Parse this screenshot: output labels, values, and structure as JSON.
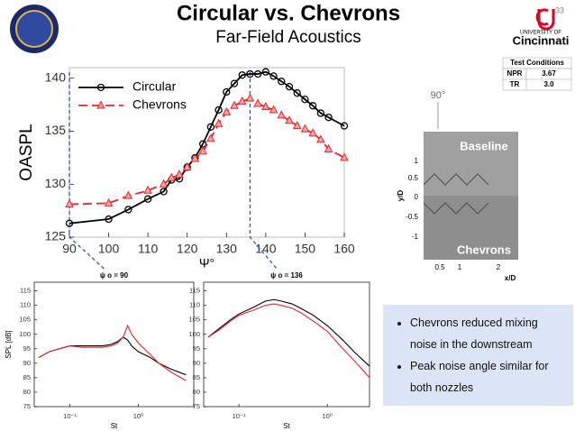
{
  "header": {
    "title": "Circular vs. Chevrons",
    "subtitle": "Far-Field Acoustics",
    "page_number": "33",
    "logo_line1": "UNIVERSITY OF",
    "logo_line2": "Cincinnati"
  },
  "table": {
    "title": "Test Conditions",
    "rows": [
      [
        "NPR",
        "3.67"
      ],
      [
        "TR",
        "3.0"
      ]
    ]
  },
  "schlieren": {
    "angle_label": "90°",
    "top_label": "Baseline",
    "bottom_label": "Chevrons",
    "y_label": "y/D",
    "x_label": "x/D",
    "yticks": [
      "1",
      "0.5",
      "0",
      "-0.5",
      "-1"
    ],
    "xticks": [
      "0.5",
      "1",
      "2"
    ]
  },
  "bullets": [
    "Chevrons reduced mixing noise in the downstream",
    "Peak noise angle similar for both nozzles"
  ],
  "chart_data": [
    {
      "type": "line",
      "y_label": "OASPL",
      "x_label": "Ψ°",
      "legend": "upper left",
      "marked_angles": [
        90,
        136
      ],
      "xlim": [
        90,
        160
      ],
      "xticks": [
        90,
        100,
        110,
        120,
        130,
        140,
        150,
        160
      ],
      "ylim": [
        125,
        141
      ],
      "yticks": [
        125,
        130,
        135,
        140
      ],
      "x": [
        90,
        100,
        105,
        110,
        114,
        116,
        118,
        120,
        122,
        124,
        126,
        128,
        130,
        132,
        134,
        136,
        138,
        140,
        142,
        144,
        146,
        148,
        150,
        152,
        154,
        156,
        160
      ],
      "series": [
        {
          "name": "Circular",
          "color": "#000000",
          "linestyle": "solid",
          "marker": "circle",
          "values": [
            126.3,
            126.7,
            127.6,
            128.6,
            129.3,
            130.4,
            130.5,
            131.6,
            132.5,
            133.8,
            135.4,
            137.0,
            138.7,
            139.5,
            140.3,
            140.4,
            140.4,
            140.6,
            140.2,
            139.7,
            139.2,
            138.6,
            138.0,
            137.4,
            136.7,
            136.3,
            135.5
          ]
        },
        {
          "name": "Chevrons",
          "color": "#e8262a",
          "linestyle": "dashed",
          "marker": "triangle",
          "values": [
            128.1,
            128.2,
            128.9,
            129.4,
            130.0,
            130.6,
            130.9,
            131.6,
            132.4,
            133.1,
            134.3,
            135.7,
            136.8,
            137.4,
            137.8,
            138.1,
            137.6,
            137.3,
            137.0,
            136.5,
            136.0,
            135.5,
            135.2,
            134.8,
            134.2,
            133.3,
            132.5
          ]
        }
      ]
    },
    {
      "type": "line",
      "title": "ψ o = 90",
      "y_label": "SPL [dB]",
      "x_label": "St",
      "xscale": "log",
      "xlim": [
        0.03,
        6.5
      ],
      "xticks": [
        {
          "value": 0.1,
          "label": "10⁻¹"
        },
        {
          "value": 1,
          "label": "10⁰"
        }
      ],
      "ylim": [
        75,
        118
      ],
      "yticks": [
        75,
        80,
        85,
        90,
        95,
        100,
        105,
        110,
        115
      ],
      "x": [
        0.035,
        0.05,
        0.07,
        0.1,
        0.15,
        0.2,
        0.3,
        0.4,
        0.5,
        0.6,
        0.7,
        0.8,
        1,
        1.5,
        2,
        3,
        5
      ],
      "series": [
        {
          "color": "#000000",
          "values": [
            92,
            94,
            95,
            96,
            96,
            96,
            96,
            96.5,
            97.5,
            99,
            98,
            96,
            94,
            92,
            90,
            88,
            86
          ]
        },
        {
          "color": "#e8262a",
          "values": [
            92,
            94,
            95,
            96,
            95.5,
            95.5,
            95.5,
            96,
            97,
            99,
            103,
            100,
            97,
            93,
            90,
            87,
            84
          ]
        }
      ]
    },
    {
      "type": "line",
      "title": "ψ o = 136",
      "x_label": "St",
      "xscale": "log",
      "xlim": [
        0.04,
        3
      ],
      "xticks": [
        {
          "value": 0.1,
          "label": "10⁻¹"
        },
        {
          "value": 1,
          "label": "10⁰"
        }
      ],
      "ylim": [
        75,
        118
      ],
      "yticks": [
        75,
        80,
        85,
        90,
        95,
        100,
        105,
        110,
        115
      ],
      "x": [
        0.045,
        0.06,
        0.08,
        0.1,
        0.15,
        0.2,
        0.25,
        0.3,
        0.4,
        0.5,
        0.7,
        1,
        1.5,
        2,
        3
      ],
      "series": [
        {
          "color": "#000000",
          "values": [
            99,
            102,
            105,
            107,
            109.5,
            111.5,
            112,
            111.5,
            110.5,
            109,
            106.5,
            103,
            98,
            94,
            89
          ]
        },
        {
          "color": "#e8262a",
          "values": [
            99,
            101.5,
            104.5,
            106.5,
            108.5,
            110,
            110.5,
            110,
            109,
            107.5,
            104.5,
            101,
            95,
            91,
            85
          ]
        }
      ]
    }
  ]
}
